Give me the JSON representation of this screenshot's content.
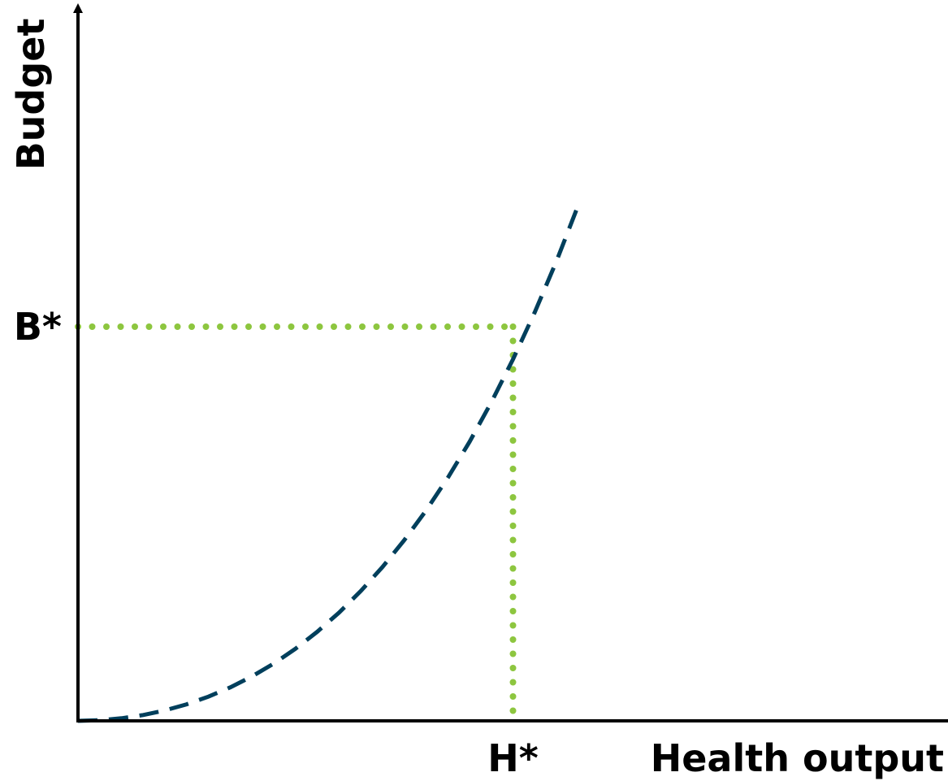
{
  "chart_data": {
    "type": "line",
    "xlabel": "Health output",
    "ylabel": "Budget",
    "series": [
      {
        "style": "dashed",
        "color": "#003f5c",
        "x": [
          0.0,
          0.05,
          0.1,
          0.15,
          0.2,
          0.25,
          0.3,
          0.35,
          0.4,
          0.45,
          0.5,
          0.55,
          0.6,
          0.65,
          0.7,
          0.75,
          0.8,
          0.85,
          0.9,
          0.95,
          1.0,
          1.05,
          1.1,
          1.15
        ],
        "y": [
          0.0,
          0.0016,
          0.0065,
          0.0148,
          0.0266,
          0.0421,
          0.0614,
          0.0849,
          0.1128,
          0.1454,
          0.183,
          0.2259,
          0.2745,
          0.3292,
          0.3903,
          0.4583,
          0.5335,
          0.6165,
          0.7078,
          0.8079,
          0.9173,
          1.0367,
          1.1667,
          1.308
        ]
      }
    ],
    "markers": {
      "x_marker": {
        "label": "H*",
        "value": 1.0
      },
      "y_marker": {
        "label": "B*",
        "value": 1.0
      },
      "guide_color": "#8dc63f",
      "guide_style": "dotted"
    },
    "xlim": [
      0,
      2.0
    ],
    "ylim": [
      0,
      1.8
    ],
    "grid": false,
    "legend": "none"
  }
}
